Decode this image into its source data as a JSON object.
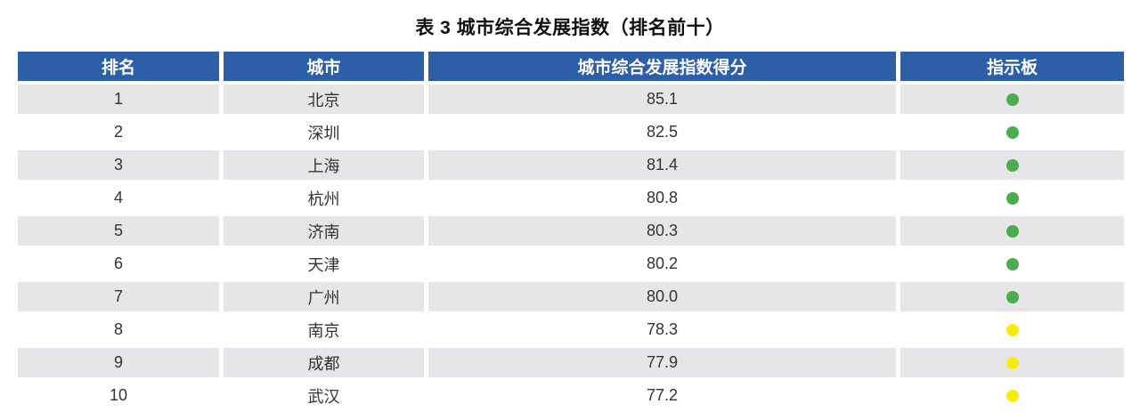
{
  "title": "表 3 城市综合发展指数（排名前十）",
  "colors": {
    "header_bg": "#2D5FA6",
    "header_text": "#FFFFFF",
    "row_even_bg": "#E6E6E8",
    "row_odd_bg": "#FFFFFF",
    "dot_green": "#4AAD4E",
    "dot_yellow": "#F7EB0B"
  },
  "table": {
    "headers": [
      "排名",
      "城市",
      "城市综合发展指数得分",
      "指示板"
    ],
    "rows": [
      {
        "rank": "1",
        "city": "北京",
        "score": "85.1",
        "indicator": "green"
      },
      {
        "rank": "2",
        "city": "深圳",
        "score": "82.5",
        "indicator": "green"
      },
      {
        "rank": "3",
        "city": "上海",
        "score": "81.4",
        "indicator": "green"
      },
      {
        "rank": "4",
        "city": "杭州",
        "score": "80.8",
        "indicator": "green"
      },
      {
        "rank": "5",
        "city": "济南",
        "score": "80.3",
        "indicator": "green"
      },
      {
        "rank": "6",
        "city": "天津",
        "score": "80.2",
        "indicator": "green"
      },
      {
        "rank": "7",
        "city": "广州",
        "score": "80.0",
        "indicator": "green"
      },
      {
        "rank": "8",
        "city": "南京",
        "score": "78.3",
        "indicator": "yellow"
      },
      {
        "rank": "9",
        "city": "成都",
        "score": "77.9",
        "indicator": "yellow"
      },
      {
        "rank": "10",
        "city": "武汉",
        "score": "77.2",
        "indicator": "yellow"
      }
    ]
  },
  "chart_data": {
    "type": "table",
    "title": "表 3 城市综合发展指数（排名前十）",
    "columns": [
      "排名",
      "城市",
      "城市综合发展指数得分",
      "指示板"
    ],
    "rows": [
      [
        1,
        "北京",
        85.1,
        "green"
      ],
      [
        2,
        "深圳",
        82.5,
        "green"
      ],
      [
        3,
        "上海",
        81.4,
        "green"
      ],
      [
        4,
        "杭州",
        80.8,
        "green"
      ],
      [
        5,
        "济南",
        80.3,
        "green"
      ],
      [
        6,
        "天津",
        80.2,
        "green"
      ],
      [
        7,
        "广州",
        80.0,
        "green"
      ],
      [
        8,
        "南京",
        78.3,
        "yellow"
      ],
      [
        9,
        "成都",
        77.9,
        "yellow"
      ],
      [
        10,
        "武汉",
        77.2,
        "yellow"
      ]
    ]
  }
}
